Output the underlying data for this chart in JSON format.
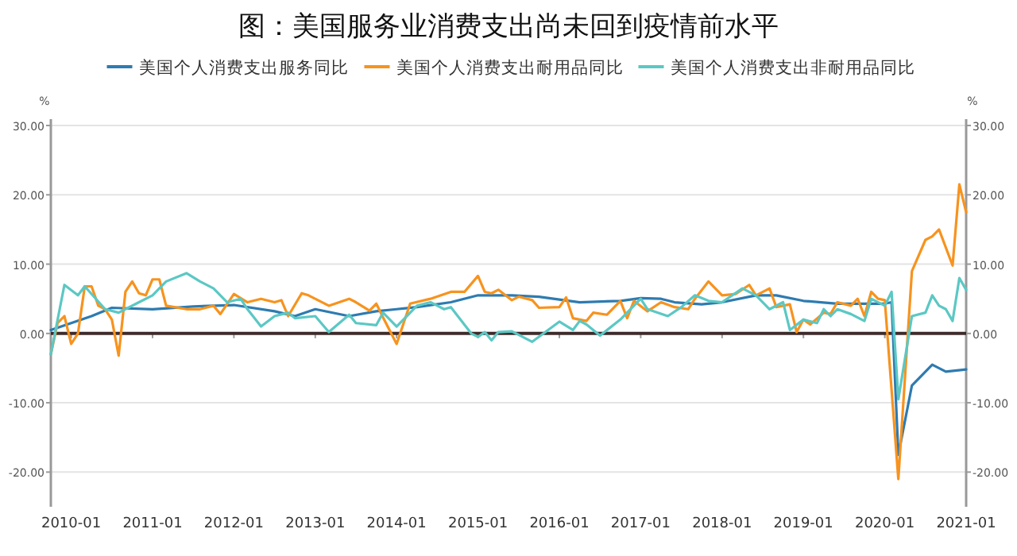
{
  "chart_data": {
    "type": "line",
    "title": "图：美国服务业消费支出尚未回到疫情前水平",
    "ylabel": "%",
    "y2label": "%",
    "xlim": [
      "2009-10",
      "2021-01"
    ],
    "xticks": [
      {
        "value": "2010-01",
        "label": "2010-01"
      },
      {
        "value": "2011-01",
        "label": "2011-01"
      },
      {
        "value": "2012-01",
        "label": "2012-01"
      },
      {
        "value": "2013-01",
        "label": "2013-01"
      },
      {
        "value": "2014-01",
        "label": "2014-01"
      },
      {
        "value": "2015-01",
        "label": "2015-01"
      },
      {
        "value": "2016-01",
        "label": "2016-01"
      },
      {
        "value": "2017-01",
        "label": "2017-01"
      },
      {
        "value": "2018-01",
        "label": "2018-01"
      },
      {
        "value": "2019-01",
        "label": "2019-01"
      },
      {
        "value": "2020-01",
        "label": "2020-01"
      },
      {
        "value": "2021-01",
        "label": "2021-01"
      }
    ],
    "ylim": [
      -25,
      30
    ],
    "yticks": [
      {
        "value": -20,
        "label": "-20.00"
      },
      {
        "value": -10,
        "label": "-10.00"
      },
      {
        "value": 0,
        "label": "0.00"
      },
      {
        "value": 10,
        "label": "10.00"
      },
      {
        "value": 20,
        "label": "20.00"
      },
      {
        "value": 30,
        "label": "30.00"
      }
    ],
    "y2lim": [
      -25,
      30
    ],
    "y2ticks": [
      {
        "value": -20,
        "label": "-20.00"
      },
      {
        "value": -10,
        "label": "-10.00"
      },
      {
        "value": 0,
        "label": "0.00"
      },
      {
        "value": 10,
        "label": "10.00"
      },
      {
        "value": 20,
        "label": "20.00"
      },
      {
        "value": 30,
        "label": "30.00"
      }
    ],
    "grid": "y",
    "legend": "top",
    "marker": "none",
    "line_style": "solid",
    "ref_lines": [
      {
        "axis": "y",
        "value": 0,
        "label": null,
        "color": "#3d2b2b"
      }
    ],
    "series": [
      {
        "name": "美国个人消费支出服务同比",
        "color": "#2e7bb0",
        "x": [
          "2009-10",
          "2010-01",
          "2010-04",
          "2010-07",
          "2011-01",
          "2011-07",
          "2012-01",
          "2012-07",
          "2012-10",
          "2013-01",
          "2013-06",
          "2013-10",
          "2014-01",
          "2014-04",
          "2014-09",
          "2015-01",
          "2015-06",
          "2015-10",
          "2016-04",
          "2016-10",
          "2017-01",
          "2017-04",
          "2017-06",
          "2017-10",
          "2018-01",
          "2018-06",
          "2018-09",
          "2019-01",
          "2019-06",
          "2020-01",
          "2020-02",
          "2020-03",
          "2020-05",
          "2020-08",
          "2020-10",
          "2021-01"
        ],
        "values": [
          0.5,
          1.5,
          2.5,
          3.7,
          3.5,
          3.9,
          4.1,
          3.2,
          2.5,
          3.5,
          2.5,
          3.2,
          3.5,
          3.8,
          4.5,
          5.5,
          5.5,
          5.3,
          4.5,
          4.7,
          5.1,
          5,
          4.5,
          4.2,
          4.5,
          5.5,
          5.5,
          4.7,
          4.3,
          4.3,
          4.5,
          -17.5,
          -7.5,
          -4.5,
          -5.5,
          -5.2
        ]
      },
      {
        "name": "美国个人消费支出耐用品同比",
        "color": "#f7931e",
        "x": [
          "2009-10",
          "2009-11",
          "2009-12",
          "2010-01",
          "2010-02",
          "2010-03",
          "2010-04",
          "2010-05",
          "2010-06",
          "2010-07",
          "2010-08",
          "2010-09",
          "2010-10",
          "2010-11",
          "2010-12",
          "2011-01",
          "2011-02",
          "2011-03",
          "2011-06",
          "2011-08",
          "2011-10",
          "2011-11",
          "2012-01",
          "2012-03",
          "2012-05",
          "2012-07",
          "2012-08",
          "2012-09",
          "2012-11",
          "2012-12",
          "2013-03",
          "2013-06",
          "2013-07",
          "2013-09",
          "2013-10",
          "2013-11",
          "2014-01",
          "2014-03",
          "2014-06",
          "2014-09",
          "2014-11",
          "2015-01",
          "2015-02",
          "2015-03",
          "2015-04",
          "2015-06",
          "2015-07",
          "2015-09",
          "2015-10",
          "2016-01",
          "2016-02",
          "2016-03",
          "2016-05",
          "2016-06",
          "2016-08",
          "2016-10",
          "2016-11",
          "2016-12",
          "2017-02",
          "2017-04",
          "2017-06",
          "2017-08",
          "2017-09",
          "2017-11",
          "2018-01",
          "2018-03",
          "2018-05",
          "2018-06",
          "2018-08",
          "2018-09",
          "2018-11",
          "2018-12",
          "2019-01",
          "2019-02",
          "2019-04",
          "2019-05",
          "2019-06",
          "2019-08",
          "2019-09",
          "2019-10",
          "2019-11",
          "2019-12",
          "2020-01",
          "2020-03",
          "2020-05",
          "2020-07",
          "2020-08",
          "2020-09",
          "2020-11",
          "2020-12",
          "2021-01"
        ],
        "values": [
          -3,
          1.5,
          2.5,
          -1.5,
          0,
          6.8,
          6.8,
          4,
          3.5,
          2,
          -3.2,
          6,
          7.5,
          5.8,
          5.5,
          7.8,
          7.8,
          4,
          3.5,
          3.5,
          4,
          2.8,
          5.7,
          4.5,
          5,
          4.5,
          4.8,
          2.5,
          5.8,
          5.5,
          4,
          5,
          4.5,
          3.3,
          4.3,
          2.3,
          -1.5,
          4.3,
          5,
          6,
          6,
          8.3,
          6,
          5.8,
          6.3,
          4.8,
          5.3,
          4.8,
          3.7,
          3.8,
          5.2,
          2.2,
          1.8,
          3,
          2.7,
          4.7,
          2.2,
          4.7,
          3.2,
          4.5,
          3.8,
          3.5,
          5,
          7.5,
          5.5,
          5.7,
          7,
          5.5,
          6.5,
          3.8,
          4.2,
          0.2,
          2,
          1.3,
          3,
          2.8,
          4.5,
          4,
          5,
          2.5,
          6,
          5,
          4.8,
          -21,
          9,
          13.5,
          14,
          15,
          9.8,
          21.5,
          17.5
        ]
      },
      {
        "name": "美国个人消费支出非耐用品同比",
        "color": "#5bc8c4",
        "x": [
          "2009-10",
          "2009-12",
          "2010-02",
          "2010-03",
          "2010-06",
          "2010-08",
          "2010-11",
          "2011-01",
          "2011-03",
          "2011-06",
          "2011-08",
          "2011-10",
          "2011-12",
          "2012-02",
          "2012-03",
          "2012-05",
          "2012-07",
          "2012-09",
          "2012-10",
          "2013-01",
          "2013-03",
          "2013-06",
          "2013-07",
          "2013-10",
          "2013-11",
          "2014-01",
          "2014-04",
          "2014-06",
          "2014-07",
          "2014-08",
          "2014-09",
          "2014-12",
          "2015-01",
          "2015-02",
          "2015-03",
          "2015-04",
          "2015-06",
          "2015-09",
          "2016-01",
          "2016-03",
          "2016-04",
          "2016-05",
          "2016-07",
          "2016-10",
          "2017-01",
          "2017-02",
          "2017-05",
          "2017-07",
          "2017-09",
          "2017-11",
          "2018-01",
          "2018-04",
          "2018-06",
          "2018-08",
          "2018-10",
          "2018-11",
          "2019-01",
          "2019-03",
          "2019-04",
          "2019-05",
          "2019-06",
          "2019-08",
          "2019-10",
          "2019-11",
          "2020-01",
          "2020-02",
          "2020-03",
          "2020-05",
          "2020-07",
          "2020-08",
          "2020-09",
          "2020-10",
          "2020-11",
          "2020-12",
          "2021-01"
        ],
        "values": [
          -3,
          7,
          5.5,
          6.8,
          3.5,
          3,
          4.5,
          5.5,
          7.5,
          8.7,
          7.5,
          6.5,
          4.5,
          5,
          3.5,
          1,
          2.5,
          3,
          2.2,
          2.5,
          0.2,
          2.7,
          1.5,
          1.2,
          3,
          1,
          4,
          4.5,
          4,
          3.5,
          3.8,
          0,
          -0.5,
          0.2,
          -1,
          0.2,
          0.3,
          -1.2,
          1.7,
          0.5,
          1.8,
          1.3,
          -0.3,
          2,
          5,
          3.5,
          2.5,
          3.8,
          5.5,
          4.7,
          4.5,
          6.5,
          5.5,
          3.5,
          4.5,
          0.5,
          2,
          1.5,
          3.5,
          2.5,
          3.5,
          2.8,
          1.8,
          5,
          4,
          6,
          -9.5,
          2.5,
          3,
          5.5,
          4,
          3.5,
          1.8,
          8,
          6.3
        ]
      }
    ]
  }
}
